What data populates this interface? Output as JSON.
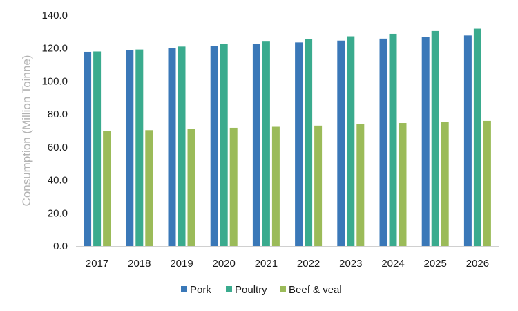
{
  "chart_data": {
    "type": "bar",
    "categories": [
      "2017",
      "2018",
      "2019",
      "2020",
      "2021",
      "2022",
      "2023",
      "2024",
      "2025",
      "2026"
    ],
    "series": [
      {
        "name": "Pork",
        "color": "#3a78b8",
        "values": [
          117.8,
          118.8,
          120.0,
          121.2,
          122.5,
          123.5,
          124.6,
          125.8,
          126.9,
          127.7
        ]
      },
      {
        "name": "Poultry",
        "color": "#3aab8e",
        "values": [
          118.0,
          119.2,
          121.0,
          122.5,
          124.0,
          125.6,
          127.2,
          128.7,
          130.4,
          131.8
        ]
      },
      {
        "name": "Beef & veal",
        "color": "#9bbb59",
        "values": [
          69.6,
          70.3,
          70.9,
          71.7,
          72.3,
          73.0,
          73.8,
          74.6,
          75.2,
          75.9
        ]
      }
    ],
    "title": "",
    "xlabel": "",
    "ylabel": "Consumption (Million Toinne)",
    "ylim": [
      0,
      140
    ],
    "yticks": [
      "0.0",
      "20.0",
      "40.0",
      "60.0",
      "80.0",
      "100.0",
      "120.0",
      "140.0"
    ],
    "grid": false,
    "legend_position": "bottom"
  }
}
